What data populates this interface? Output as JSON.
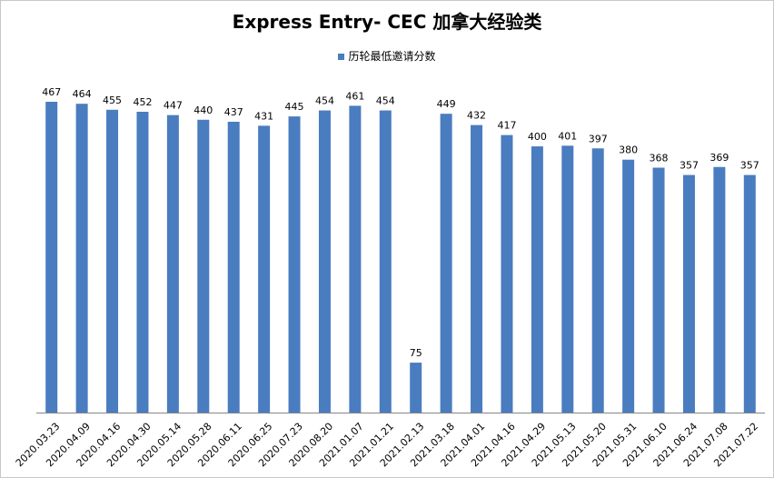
{
  "chart_data": {
    "type": "bar",
    "title": "Express Entry- CEC 加拿大经验类",
    "xlabel": "",
    "ylabel": "",
    "ylim": [
      0,
      480
    ],
    "grid": false,
    "legend_position": "top-center",
    "categories": [
      "2020.03.23",
      "2020.04.09",
      "2020.04.16",
      "2020.04.30",
      "2020.05.14",
      "2020.05.28",
      "2020.06.11",
      "2020.06.25",
      "2020.07.23",
      "2020.08.20",
      "2021.01.07",
      "2021.01.21",
      "2021.02.13",
      "2021.03.18",
      "2021.04.01",
      "2021.04.16",
      "2021.04.29",
      "2021.05.13",
      "2021.05.20",
      "2021.05.31",
      "2021.06.10",
      "2021.06.24",
      "2021.07.08",
      "2021.07.22"
    ],
    "series": [
      {
        "name": "历轮最低邀请分数",
        "color": "#4a7cc0",
        "values": [
          467,
          464,
          455,
          452,
          447,
          440,
          437,
          431,
          445,
          454,
          461,
          454,
          75,
          449,
          432,
          417,
          400,
          401,
          397,
          380,
          368,
          357,
          369,
          357
        ]
      }
    ]
  }
}
